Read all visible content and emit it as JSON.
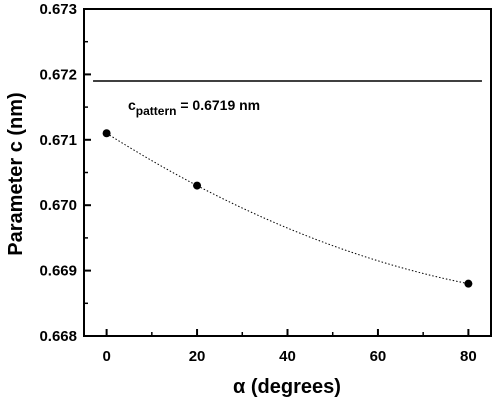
{
  "chart_data": {
    "type": "scatter",
    "xlabel": "α (degrees)",
    "ylabel": "Parameter c (nm)",
    "xlim": [
      -5,
      85
    ],
    "ylim": [
      0.668,
      0.673
    ],
    "x_ticks": [
      0,
      20,
      40,
      60,
      80
    ],
    "x_tick_labels": [
      "0",
      "20",
      "40",
      "60",
      "80"
    ],
    "y_ticks": [
      0.668,
      0.669,
      0.67,
      0.671,
      0.672,
      0.673
    ],
    "y_tick_labels": [
      "0.668",
      "0.669",
      "0.670",
      "0.671",
      "0.672",
      "0.673"
    ],
    "grid": false,
    "series": [
      {
        "x": [
          0,
          20,
          80
        ],
        "y": [
          0.6711,
          0.6703,
          0.6688
        ],
        "style": "scatter-with-dotted-fit",
        "color": "#000000"
      }
    ],
    "reference_line": {
      "y": 0.6719,
      "x_range": [
        -3,
        83
      ]
    },
    "annotation": {
      "main": "c",
      "subscript": "pattern",
      "text": " = 0.6719 nm"
    }
  }
}
